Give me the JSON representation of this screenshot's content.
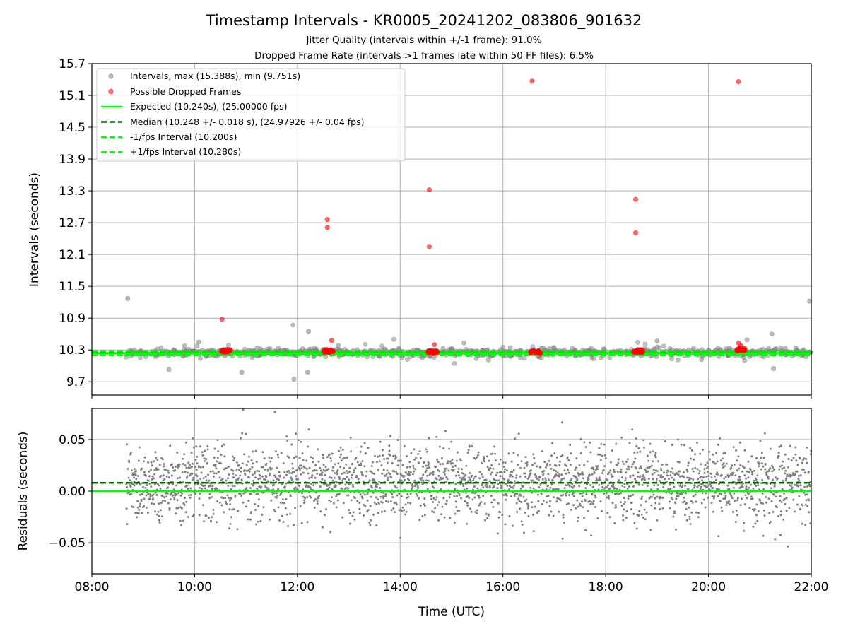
{
  "title": "Timestamp Intervals - KR0005_20241202_083806_901632",
  "subtitle_1": "Jitter Quality (intervals within +/-1 frame): 91.0%",
  "subtitle_2": "Dropped Frame Rate (intervals >1 frames late within 50 FF files): 6.5%",
  "colors": {
    "intervals": "#808080",
    "dropped": "#ff0000",
    "expected": "#00ff00",
    "median": "#006400",
    "fps_band": "#00ff00",
    "grid": "#b0b0b0"
  },
  "chart_data": [
    {
      "type": "scatter",
      "ylabel": "Intervals (seconds)",
      "xlim": [
        "08:00",
        "22:00"
      ],
      "ylim": [
        9.45,
        15.7
      ],
      "yticks": [
        "9.7",
        "10.3",
        "10.9",
        "11.5",
        "12.1",
        "12.7",
        "13.3",
        "13.9",
        "14.5",
        "15.1",
        "15.7"
      ],
      "grid": true,
      "legend_position": "upper-left",
      "legend": [
        "Intervals, max (15.388s), min (9.751s)",
        "Possible Dropped Frames",
        "Expected (10.240s), (25.00000 fps)",
        "Median (10.248 +/- 0.018 s), (24.97926 +/- 0.04 fps)",
        "-1/fps Interval (10.200s)",
        "+1/fps Interval (10.280s)"
      ],
      "expected_interval": 10.24,
      "median_interval": 10.248,
      "minus_fps_interval": 10.2,
      "plus_fps_interval": 10.28,
      "outlier_intervals": [
        {
          "time": "08:42",
          "value": 11.27
        },
        {
          "time": "10:05",
          "value": 10.45
        },
        {
          "time": "11:55",
          "value": 10.77
        },
        {
          "time": "11:56",
          "value": 9.75
        },
        {
          "time": "12:13",
          "value": 10.65
        },
        {
          "time": "12:12",
          "value": 9.88
        },
        {
          "time": "10:55",
          "value": 9.88
        },
        {
          "time": "09:30",
          "value": 9.93
        },
        {
          "time": "21:16",
          "value": 9.95
        },
        {
          "time": "21:14",
          "value": 10.6
        },
        {
          "time": "21:58",
          "value": 11.22
        },
        {
          "time": "19:00",
          "value": 10.47
        },
        {
          "time": "20:45",
          "value": 10.49
        }
      ],
      "dropped_frames": [
        {
          "time": "10:32",
          "value": 10.88
        },
        {
          "time": "12:35",
          "value": 12.76
        },
        {
          "time": "12:35",
          "value": 12.61
        },
        {
          "time": "12:40",
          "value": 10.48
        },
        {
          "time": "14:34",
          "value": 13.32
        },
        {
          "time": "14:34",
          "value": 12.25
        },
        {
          "time": "14:40",
          "value": 10.4
        },
        {
          "time": "16:34",
          "value": 15.37
        },
        {
          "time": "18:35",
          "value": 13.14
        },
        {
          "time": "18:35",
          "value": 12.51
        },
        {
          "time": "20:35",
          "value": 15.36
        },
        {
          "time": "20:35",
          "value": 10.43
        },
        {
          "time": "20:38",
          "value": 10.38
        }
      ],
      "dropped_clusters": [
        {
          "from": "10:30",
          "to": "10:42",
          "value": 10.28
        },
        {
          "from": "12:31",
          "to": "12:42",
          "value": 10.28
        },
        {
          "from": "14:32",
          "to": "14:44",
          "value": 10.26
        },
        {
          "from": "16:32",
          "to": "16:44",
          "value": 10.26
        },
        {
          "from": "18:32",
          "to": "18:44",
          "value": 10.28
        },
        {
          "from": "20:33",
          "to": "20:43",
          "value": 10.3
        }
      ]
    },
    {
      "type": "scatter",
      "xlabel": "Time (UTC)",
      "ylabel": "Residuals (seconds)",
      "xlim": [
        "08:00",
        "22:00"
      ],
      "xticks": [
        "08:00",
        "10:00",
        "12:00",
        "14:00",
        "16:00",
        "18:00",
        "20:00",
        "22:00"
      ],
      "ylim": [
        -0.08,
        0.08
      ],
      "yticks": [
        "−0.05",
        "0.00",
        "0.05"
      ],
      "grid": true,
      "expected_residual": 0.0,
      "median_residual": 0.008,
      "residual_center": 0.008,
      "residual_spread": 0.018,
      "residual_start": "08:40",
      "residual_point_count": 2600
    }
  ]
}
